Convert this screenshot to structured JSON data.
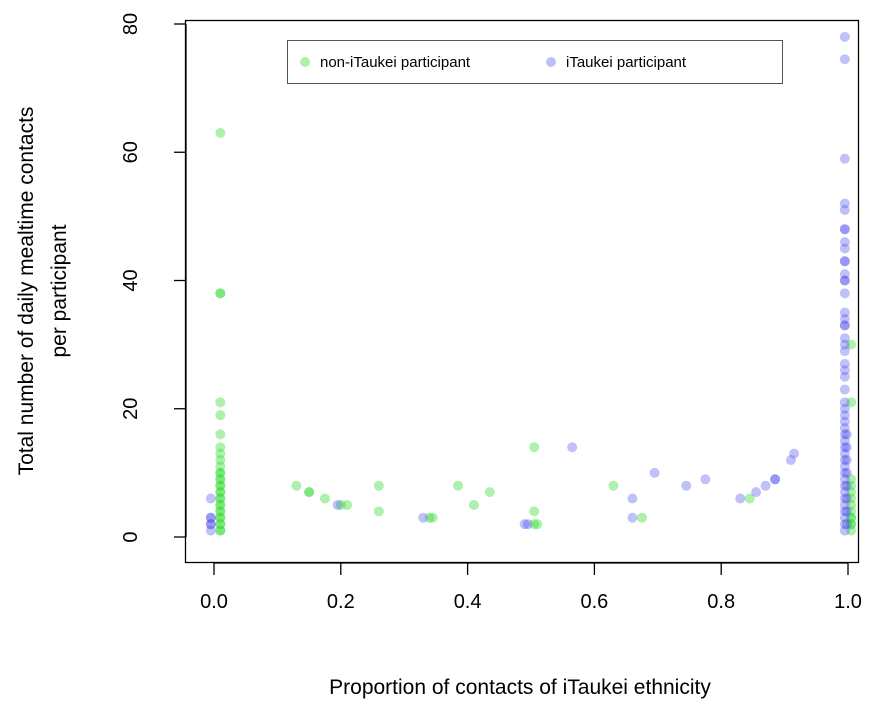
{
  "chart_data": {
    "type": "scatter",
    "xlabel": "Proportion of contacts of iTaukei ethnicity",
    "ylabel_lines": [
      "Total number of daily mealtime contacts",
      "per participant"
    ],
    "xlim": [
      0,
      1
    ],
    "ylim": [
      0,
      80
    ],
    "x_ticks": [
      "0.0",
      "0.2",
      "0.4",
      "0.6",
      "0.8",
      "1.0"
    ],
    "y_ticks": [
      "0",
      "20",
      "40",
      "60",
      "80"
    ],
    "grid": false,
    "legend_position": "top-center",
    "series": [
      {
        "name": "non-iTaukei participant",
        "color": "#33dd33",
        "points": [
          [
            0.01,
            63
          ],
          [
            0.01,
            38
          ],
          [
            0.01,
            38
          ],
          [
            0.01,
            21
          ],
          [
            0.01,
            19
          ],
          [
            0.01,
            16
          ],
          [
            0.01,
            14
          ],
          [
            0.01,
            13
          ],
          [
            0.01,
            12
          ],
          [
            0.01,
            11
          ],
          [
            0.01,
            10
          ],
          [
            0.01,
            10
          ],
          [
            0.01,
            9
          ],
          [
            0.01,
            9
          ],
          [
            0.01,
            8
          ],
          [
            0.01,
            8
          ],
          [
            0.01,
            7
          ],
          [
            0.01,
            7
          ],
          [
            0.01,
            6
          ],
          [
            0.01,
            6
          ],
          [
            0.01,
            5
          ],
          [
            0.01,
            5
          ],
          [
            0.01,
            4
          ],
          [
            0.01,
            4
          ],
          [
            0.01,
            3
          ],
          [
            0.01,
            3
          ],
          [
            0.01,
            2
          ],
          [
            0.01,
            2
          ],
          [
            0.01,
            1
          ],
          [
            0.01,
            1
          ],
          [
            0.13,
            8
          ],
          [
            0.15,
            7
          ],
          [
            0.15,
            7
          ],
          [
            0.175,
            6
          ],
          [
            0.2,
            5
          ],
          [
            0.21,
            5
          ],
          [
            0.26,
            8
          ],
          [
            0.26,
            4
          ],
          [
            0.34,
            3
          ],
          [
            0.345,
            3
          ],
          [
            0.385,
            8
          ],
          [
            0.41,
            5
          ],
          [
            0.435,
            7
          ],
          [
            0.505,
            14
          ],
          [
            0.505,
            4
          ],
          [
            0.505,
            2
          ],
          [
            0.51,
            2
          ],
          [
            0.63,
            8
          ],
          [
            0.675,
            3
          ],
          [
            0.845,
            6
          ],
          [
            1.005,
            30
          ],
          [
            1.005,
            21
          ],
          [
            1.005,
            9
          ],
          [
            1.005,
            8
          ],
          [
            1.005,
            7
          ],
          [
            1.005,
            6
          ],
          [
            1.005,
            5
          ],
          [
            1.005,
            4
          ],
          [
            1.005,
            3
          ],
          [
            1.005,
            3
          ],
          [
            1.005,
            2
          ],
          [
            1.005,
            2
          ],
          [
            1.005,
            1
          ]
        ]
      },
      {
        "name": "iTaukei participant",
        "color": "#4444ee",
        "points": [
          [
            -0.005,
            6
          ],
          [
            -0.005,
            3
          ],
          [
            -0.005,
            3
          ],
          [
            -0.005,
            2
          ],
          [
            -0.005,
            2
          ],
          [
            -0.005,
            1
          ],
          [
            0.195,
            5
          ],
          [
            0.33,
            3
          ],
          [
            0.49,
            2
          ],
          [
            0.495,
            2
          ],
          [
            0.565,
            14
          ],
          [
            0.66,
            6
          ],
          [
            0.66,
            3
          ],
          [
            0.695,
            10
          ],
          [
            0.745,
            8
          ],
          [
            0.775,
            9
          ],
          [
            0.83,
            6
          ],
          [
            0.855,
            7
          ],
          [
            0.87,
            8
          ],
          [
            0.885,
            9
          ],
          [
            0.885,
            9
          ],
          [
            0.91,
            12
          ],
          [
            0.915,
            13
          ],
          [
            0.995,
            78
          ],
          [
            0.995,
            74.5
          ],
          [
            0.995,
            59
          ],
          [
            0.995,
            52
          ],
          [
            0.995,
            51
          ],
          [
            0.995,
            48
          ],
          [
            0.995,
            48
          ],
          [
            0.995,
            46
          ],
          [
            0.995,
            45
          ],
          [
            0.995,
            43
          ],
          [
            0.995,
            43
          ],
          [
            0.995,
            41
          ],
          [
            0.995,
            40
          ],
          [
            0.995,
            40
          ],
          [
            0.995,
            38
          ],
          [
            0.995,
            35
          ],
          [
            0.995,
            34
          ],
          [
            0.995,
            33
          ],
          [
            0.995,
            33
          ],
          [
            0.995,
            31
          ],
          [
            0.995,
            30
          ],
          [
            0.995,
            29
          ],
          [
            0.995,
            27
          ],
          [
            0.995,
            26
          ],
          [
            0.995,
            25
          ],
          [
            0.995,
            23
          ],
          [
            0.995,
            21
          ],
          [
            0.995,
            20
          ],
          [
            0.995,
            19
          ],
          [
            0.995,
            18
          ],
          [
            0.995,
            17
          ],
          [
            0.995,
            16
          ],
          [
            0.995,
            15
          ],
          [
            0.995,
            14
          ],
          [
            0.995,
            13
          ],
          [
            0.995,
            12
          ],
          [
            0.995,
            11
          ],
          [
            0.995,
            10
          ],
          [
            0.995,
            9
          ],
          [
            0.995,
            8
          ],
          [
            0.995,
            7
          ],
          [
            0.995,
            6
          ],
          [
            0.995,
            5
          ],
          [
            0.995,
            4
          ],
          [
            0.995,
            3
          ],
          [
            0.995,
            2
          ],
          [
            0.995,
            1
          ],
          [
            0.998,
            16
          ],
          [
            0.998,
            14
          ],
          [
            0.998,
            12
          ],
          [
            0.998,
            10
          ],
          [
            0.998,
            8
          ],
          [
            0.998,
            6
          ],
          [
            0.998,
            4
          ],
          [
            0.998,
            2
          ]
        ]
      }
    ]
  }
}
